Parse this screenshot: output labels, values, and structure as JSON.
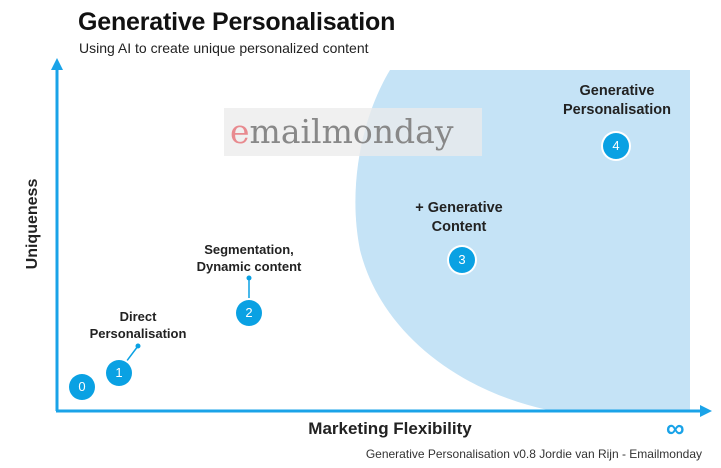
{
  "title": "Generative Personalisation",
  "subtitle": "Using AI to create unique personalized content",
  "axes": {
    "y_label": "Uniqueness",
    "x_label": "Marketing Flexibility",
    "x_end_symbol": "∞"
  },
  "watermark": {
    "first_letter": "e",
    "rest": "mailmonday"
  },
  "stages": [
    {
      "number": "0",
      "label": ""
    },
    {
      "number": "1",
      "label_line1": "Direct",
      "label_line2": "Personalisation"
    },
    {
      "number": "2",
      "label_line1": "Segmentation,",
      "label_line2": "Dynamic content"
    },
    {
      "number": "3",
      "label_line1": "+ Generative",
      "label_line2": "Content"
    },
    {
      "number": "4",
      "label_line1": "Generative",
      "label_line2": "Personalisation"
    }
  ],
  "footer": "Generative Personalisation v0.8 Jordie van Rijn - Emailmonday",
  "colors": {
    "accent": "#1aa3e8",
    "badge": "#0aa1e3",
    "region": "#c5e3f6"
  }
}
